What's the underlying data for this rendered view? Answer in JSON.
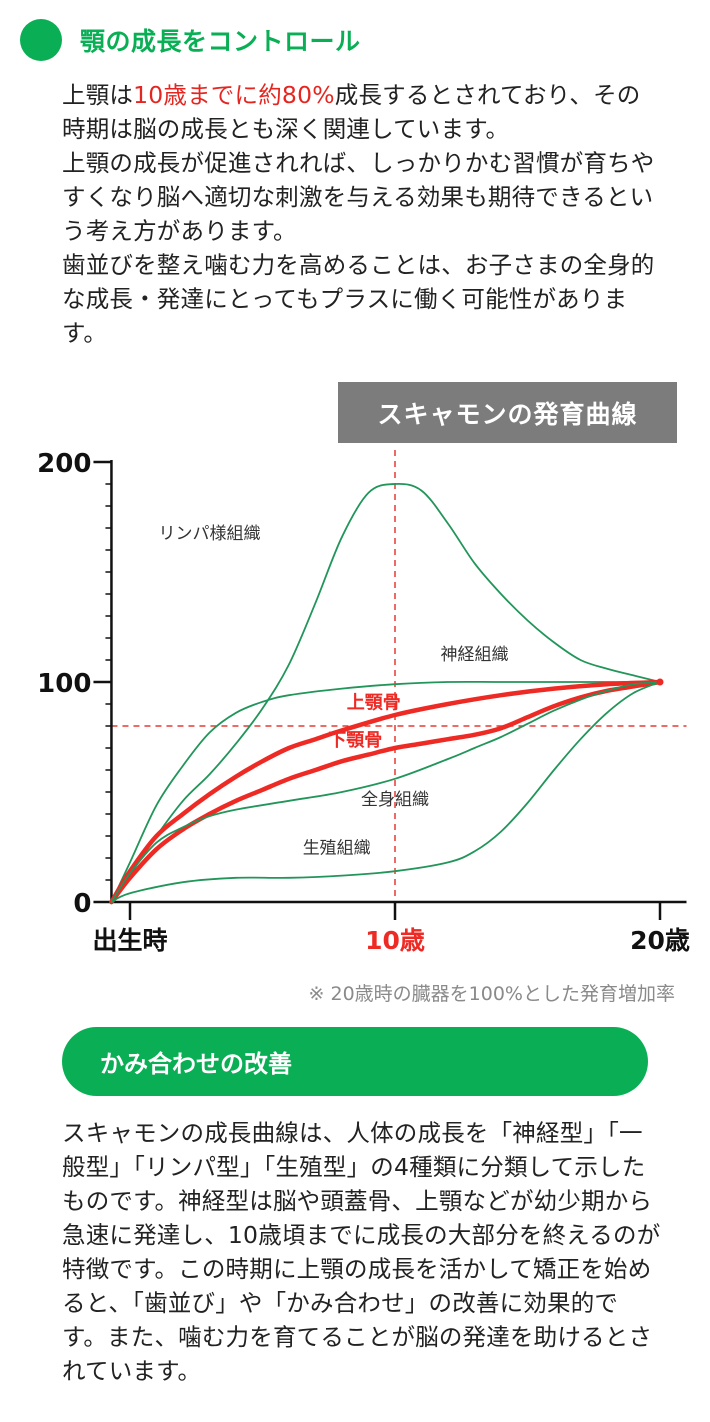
{
  "section1": {
    "title": "顎の成長をコントロール",
    "intro_pre": "上顎は",
    "intro_highlight": "10歳までに約80%",
    "intro_post": "成長するとされており、その時期は脳の成長とも深く関連しています。",
    "para2": "上顎の成長が促進されれば、しっかりかむ習慣が育ちやすくなり脳へ適切な刺激を与える効果も期待できるという考え方があります。",
    "para3": "歯並びを整え噛む力を高めることは、お子さまの全身的な成長・発達にとってもプラスに働く可能性があります。"
  },
  "chart_data": {
    "type": "line",
    "title": "スキャモンの発育曲線",
    "note": "※ 20歳時の臓器を100%とした発育増加率",
    "x_ticks": [
      {
        "value": 0,
        "label": "出生時",
        "highlight": false
      },
      {
        "value": 10,
        "label": "10歳",
        "highlight": true
      },
      {
        "value": 20,
        "label": "20歳",
        "highlight": false
      }
    ],
    "y_ticks": [
      0,
      100,
      200
    ],
    "xlim": [
      -0.7,
      21
    ],
    "ylim": [
      0,
      200
    ],
    "reference_lines": {
      "x": 10,
      "y": 80
    },
    "colors": {
      "green": "#22955a",
      "red": "#ee2a24",
      "axis": "#111111",
      "ref": "#e83a32"
    },
    "series": [
      {
        "name": "リンパ様組織",
        "style": "green",
        "x": [
          -0.7,
          1,
          2,
          3,
          4,
          5,
          6,
          7,
          8,
          9,
          10,
          11,
          12,
          13,
          14,
          15,
          16,
          17,
          18,
          19,
          20
        ],
        "y": [
          0,
          30,
          46,
          58,
          72,
          88,
          108,
          136,
          166,
          186,
          190,
          187,
          172,
          154,
          140,
          128,
          118,
          110,
          106,
          103,
          100
        ]
      },
      {
        "name": "神経組織",
        "style": "green",
        "x": [
          -0.7,
          0,
          1,
          2,
          3,
          4,
          5,
          6,
          8,
          10,
          12,
          14,
          16,
          18,
          20
        ],
        "y": [
          0,
          18,
          44,
          62,
          77,
          86,
          91,
          94,
          97,
          99,
          100,
          100,
          100,
          100,
          100
        ]
      },
      {
        "name": "上顎骨",
        "style": "red",
        "x": [
          -0.7,
          0,
          1,
          2,
          3,
          4,
          5,
          6,
          7,
          8,
          10,
          12,
          14,
          16,
          18,
          20
        ],
        "y": [
          0,
          14,
          30,
          40,
          49,
          57,
          64,
          70,
          74,
          78,
          85,
          90,
          94,
          97,
          99,
          100
        ]
      },
      {
        "name": "下顎骨",
        "style": "red",
        "x": [
          -0.7,
          0,
          1,
          2,
          3,
          4,
          5,
          6,
          7,
          8,
          9,
          10,
          11,
          12,
          13,
          14,
          15,
          16,
          17,
          18,
          19,
          20
        ],
        "y": [
          0,
          11,
          24,
          33,
          40,
          46,
          51,
          56,
          60,
          64,
          67,
          70,
          72,
          74,
          76,
          79,
          84,
          89,
          93,
          96,
          98,
          100
        ]
      },
      {
        "name": "全身組織",
        "style": "green",
        "x": [
          -0.7,
          0,
          1,
          2,
          3,
          4,
          6,
          8,
          10,
          12,
          13,
          14,
          15,
          16,
          17,
          18,
          19,
          20
        ],
        "y": [
          0,
          13,
          27,
          34,
          39,
          42,
          46,
          50,
          56,
          65,
          70,
          75,
          81,
          87,
          92,
          96,
          99,
          100
        ]
      },
      {
        "name": "生殖組織",
        "style": "green",
        "x": [
          -0.7,
          0,
          2,
          4,
          6,
          8,
          10,
          12,
          13,
          14,
          15,
          16,
          17,
          18,
          19,
          20
        ],
        "y": [
          0,
          4,
          9,
          11,
          11,
          12,
          14,
          18,
          23,
          32,
          45,
          60,
          74,
          86,
          95,
          100
        ]
      }
    ],
    "labels": [
      {
        "text": "リンパ様組織",
        "x": 3.0,
        "y": 165,
        "style": "green"
      },
      {
        "text": "神経組織",
        "x": 13.0,
        "y": 110,
        "style": "green"
      },
      {
        "text": "上顎骨",
        "x": 9.2,
        "y": 88,
        "style": "red"
      },
      {
        "text": "下顎骨",
        "x": 8.5,
        "y": 71,
        "style": "red"
      },
      {
        "text": "全身組織",
        "x": 10.0,
        "y": 44,
        "style": "green"
      },
      {
        "text": "生殖組織",
        "x": 7.8,
        "y": 22,
        "style": "green"
      }
    ]
  },
  "section2": {
    "title": "かみ合わせの改善",
    "body": "スキャモンの成長曲線は、人体の成長を「神経型」「一般型」「リンパ型」「生殖型」の4種類に分類して示したものです。神経型は脳や頭蓋骨、上顎などが幼少期から急速に発達し、10歳頃までに成長の大部分を終えるのが特徴です。この時期に上顎の成長を活かして矯正を始めると、「歯並び」や「かみ合わせ」の改善に効果的です。また、噛む力を育てることが脳の発達を助けるとされています。"
  }
}
